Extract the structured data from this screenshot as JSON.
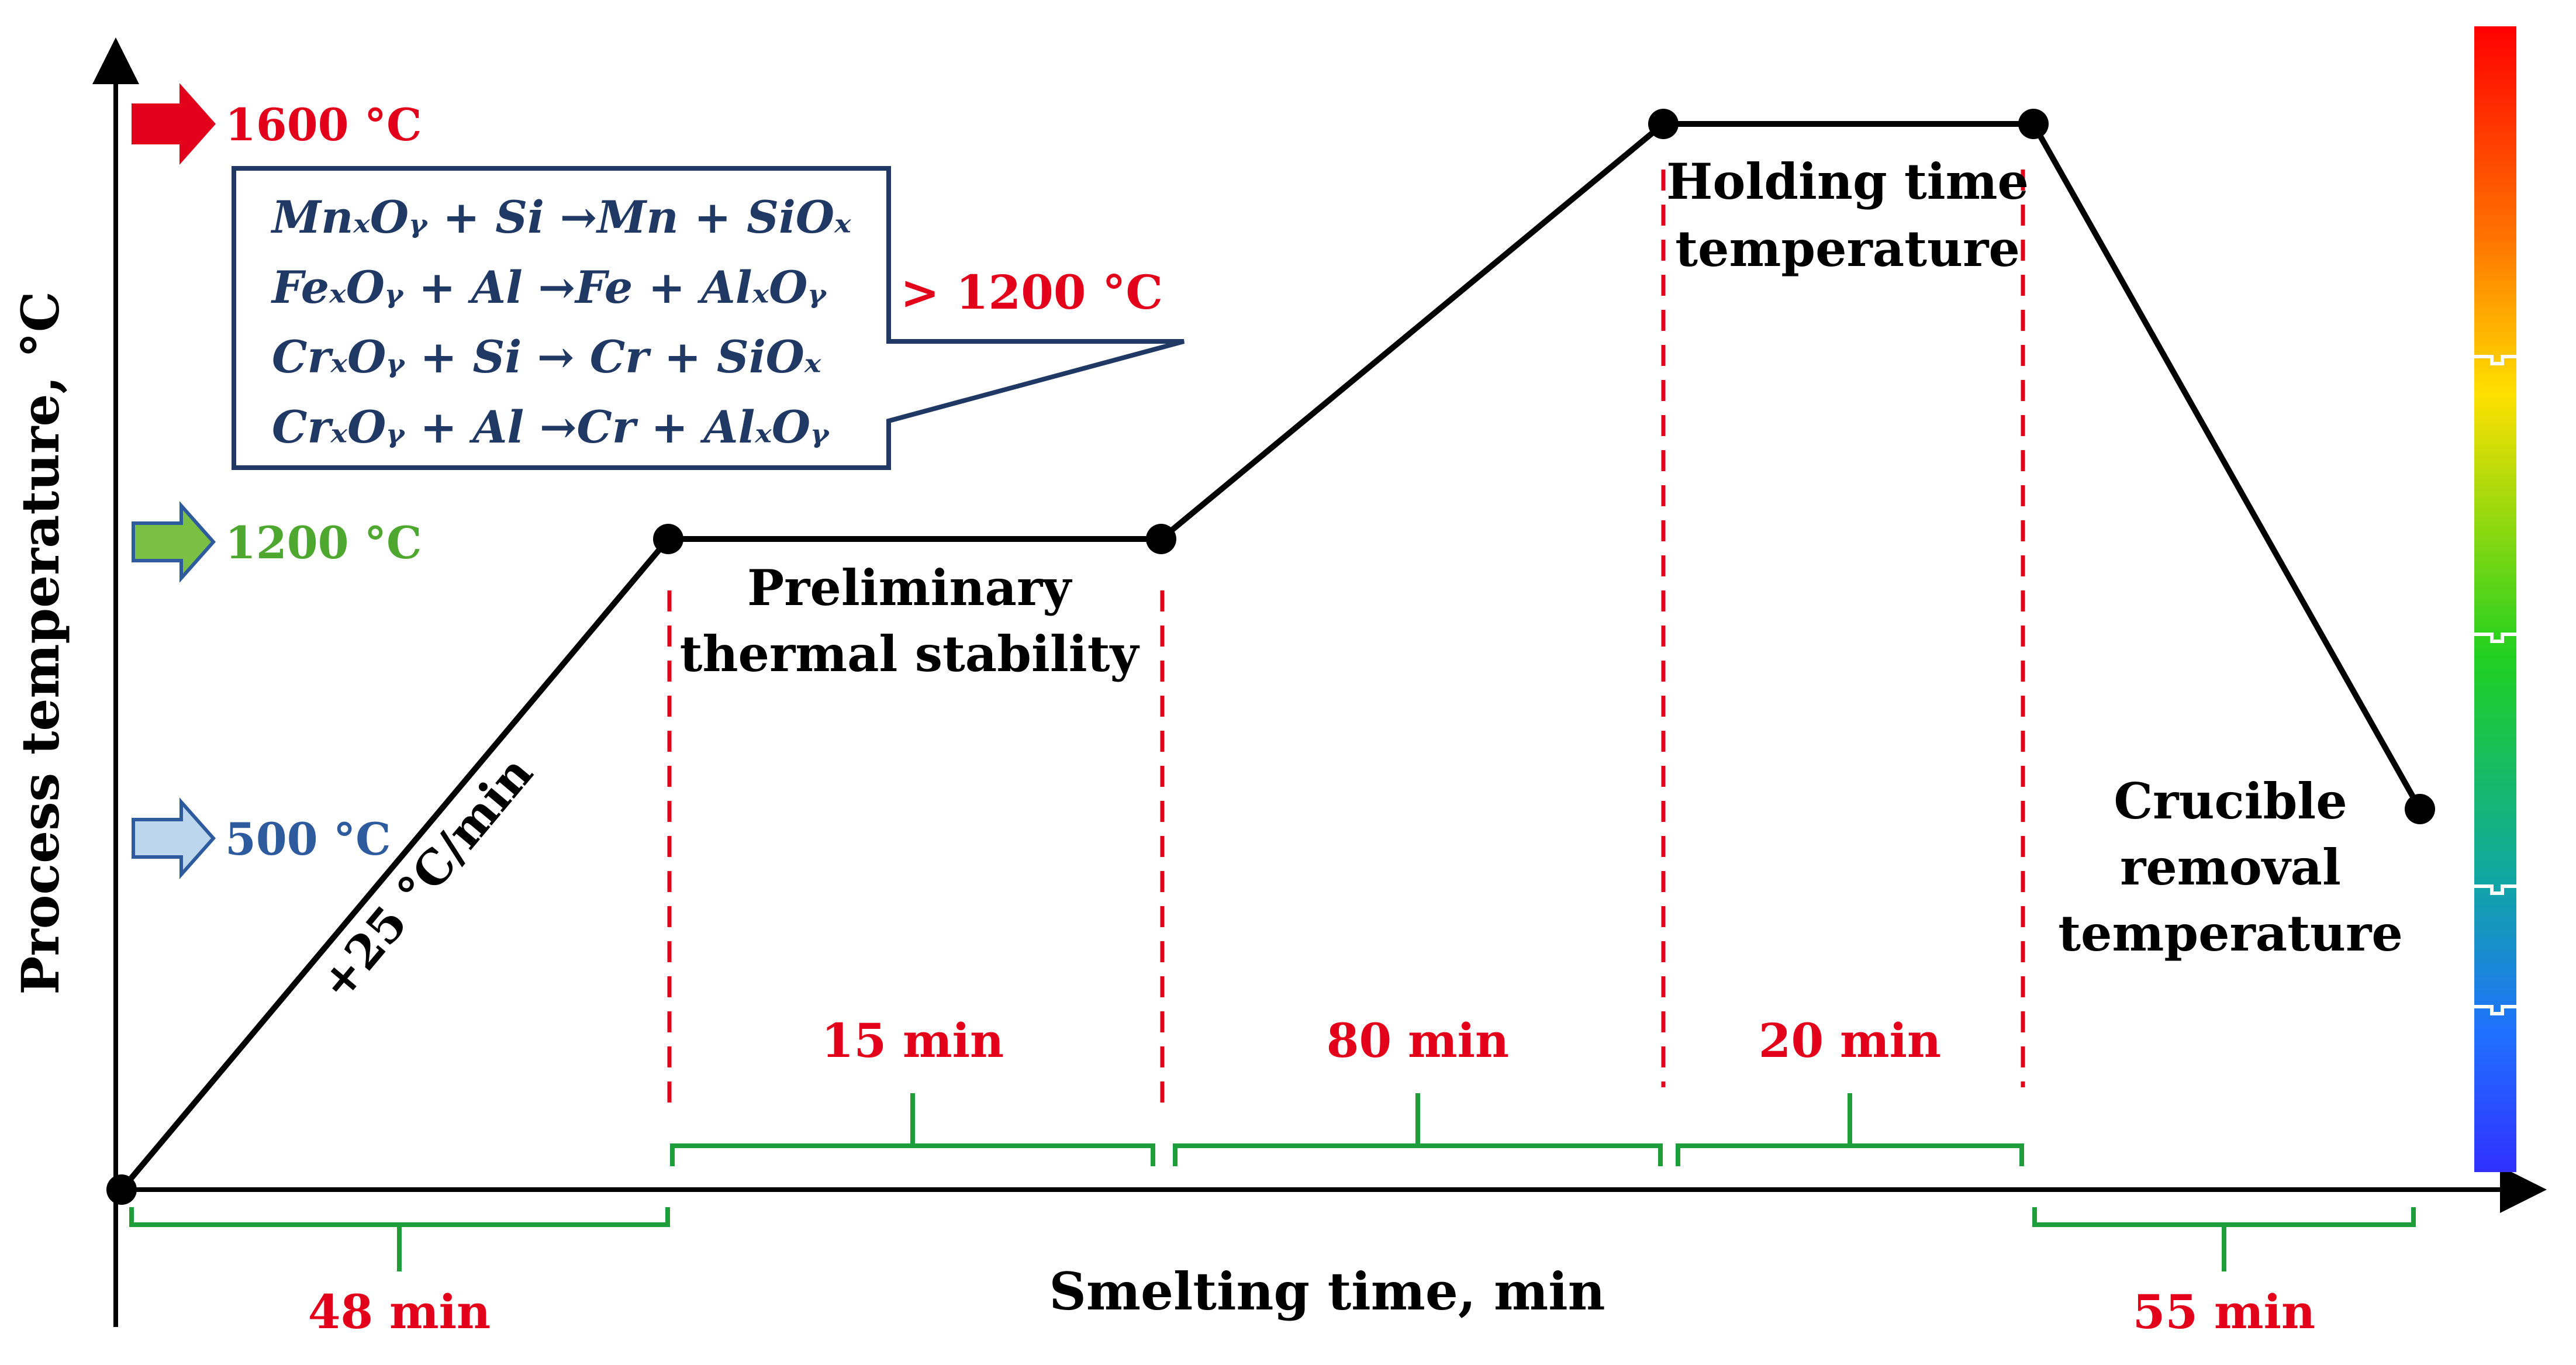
{
  "axes": {
    "y_label": "Process temperature, °C",
    "x_label": "Smelting time, min"
  },
  "temperature_levels": [
    {
      "label": "1600 °C",
      "color": "#e3001b",
      "arrow_fill": "#e3001b",
      "arrow_stroke": "#e3001b"
    },
    {
      "label": "1200 °C",
      "color": "#4ea72e",
      "arrow_fill": "#7ac143",
      "arrow_stroke": "#2e5a9e"
    },
    {
      "label": "500 °C",
      "color": "#2e5a9e",
      "arrow_fill": "#bcd6ee",
      "arrow_stroke": "#2e5a9e"
    }
  ],
  "reaction_box": {
    "threshold": "> 1200 °C",
    "threshold_color": "#e3001b",
    "text_color": "#1f3864",
    "border_color": "#1f3864",
    "reactions": [
      "MnₓOᵧ + Si →Mn + SiOₓ",
      "FeₓOᵧ + Al →Fe + AlₓOᵧ",
      "CrₓOᵧ + Si → Cr + SiOₓ",
      "CrₓOᵧ + Al →Cr + AlₓOᵧ"
    ]
  },
  "stages": {
    "heating_rate": "+25 °C/min",
    "preliminary": [
      "Preliminary",
      "thermal stability"
    ],
    "holding": [
      "Holding time",
      "temperature"
    ],
    "removal": [
      "Crucible",
      "removal",
      "temperature"
    ]
  },
  "durations": {
    "color": "#e3001b",
    "bracket_color": "#1e9e3a",
    "items": [
      "48 min",
      "15 min",
      "80 min",
      "20 min",
      "55 min"
    ]
  },
  "colors": {
    "line": "#000000",
    "dashed": "#e3001b",
    "gradient": [
      "#ff0000",
      "#ff8000",
      "#ffff00",
      "#00e000",
      "#00c0a0",
      "#0080ff",
      "#2020ff"
    ]
  }
}
